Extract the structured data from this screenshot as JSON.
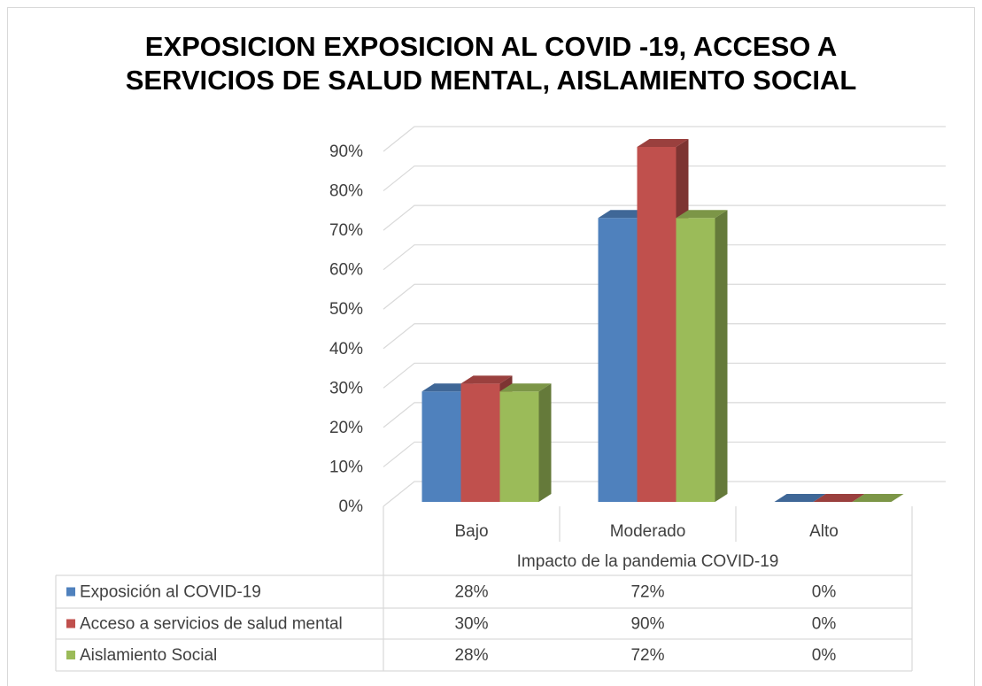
{
  "chart_data": {
    "type": "bar3d",
    "title": "EXPOSICION EXPOSICION AL COVID -19, ACCESO A SERVICIOS DE SALUD MENTAL, AISLAMIENTO SOCIAL",
    "x_label": "Impacto  de la pandemia COVID-19",
    "categories": [
      "Bajo",
      "Moderado",
      "Alto"
    ],
    "series": [
      {
        "name": "Exposición al COVID-19",
        "color": "#4f81bd",
        "values": [
          28,
          72,
          0
        ],
        "value_labels": [
          "28%",
          "72%",
          "0%"
        ]
      },
      {
        "name": "Acceso a servicios de salud mental",
        "color": "#c0504d",
        "values": [
          30,
          90,
          0
        ],
        "value_labels": [
          "30%",
          "90%",
          "0%"
        ]
      },
      {
        "name": "Aislamiento Social",
        "color": "#9bbb59",
        "values": [
          28,
          72,
          0
        ],
        "value_labels": [
          "28%",
          "72%",
          "0%"
        ]
      }
    ],
    "ylim": [
      0,
      90
    ],
    "yticks": [
      {
        "value": 0,
        "label": "0%"
      },
      {
        "value": 10,
        "label": "10%"
      },
      {
        "value": 20,
        "label": "20%"
      },
      {
        "value": 30,
        "label": "30%"
      },
      {
        "value": 40,
        "label": "40%"
      },
      {
        "value": 50,
        "label": "50%"
      },
      {
        "value": 60,
        "label": "60%"
      },
      {
        "value": 70,
        "label": "70%"
      },
      {
        "value": 80,
        "label": "80%"
      },
      {
        "value": 90,
        "label": "90%"
      }
    ],
    "grid": true,
    "data_table": true
  }
}
